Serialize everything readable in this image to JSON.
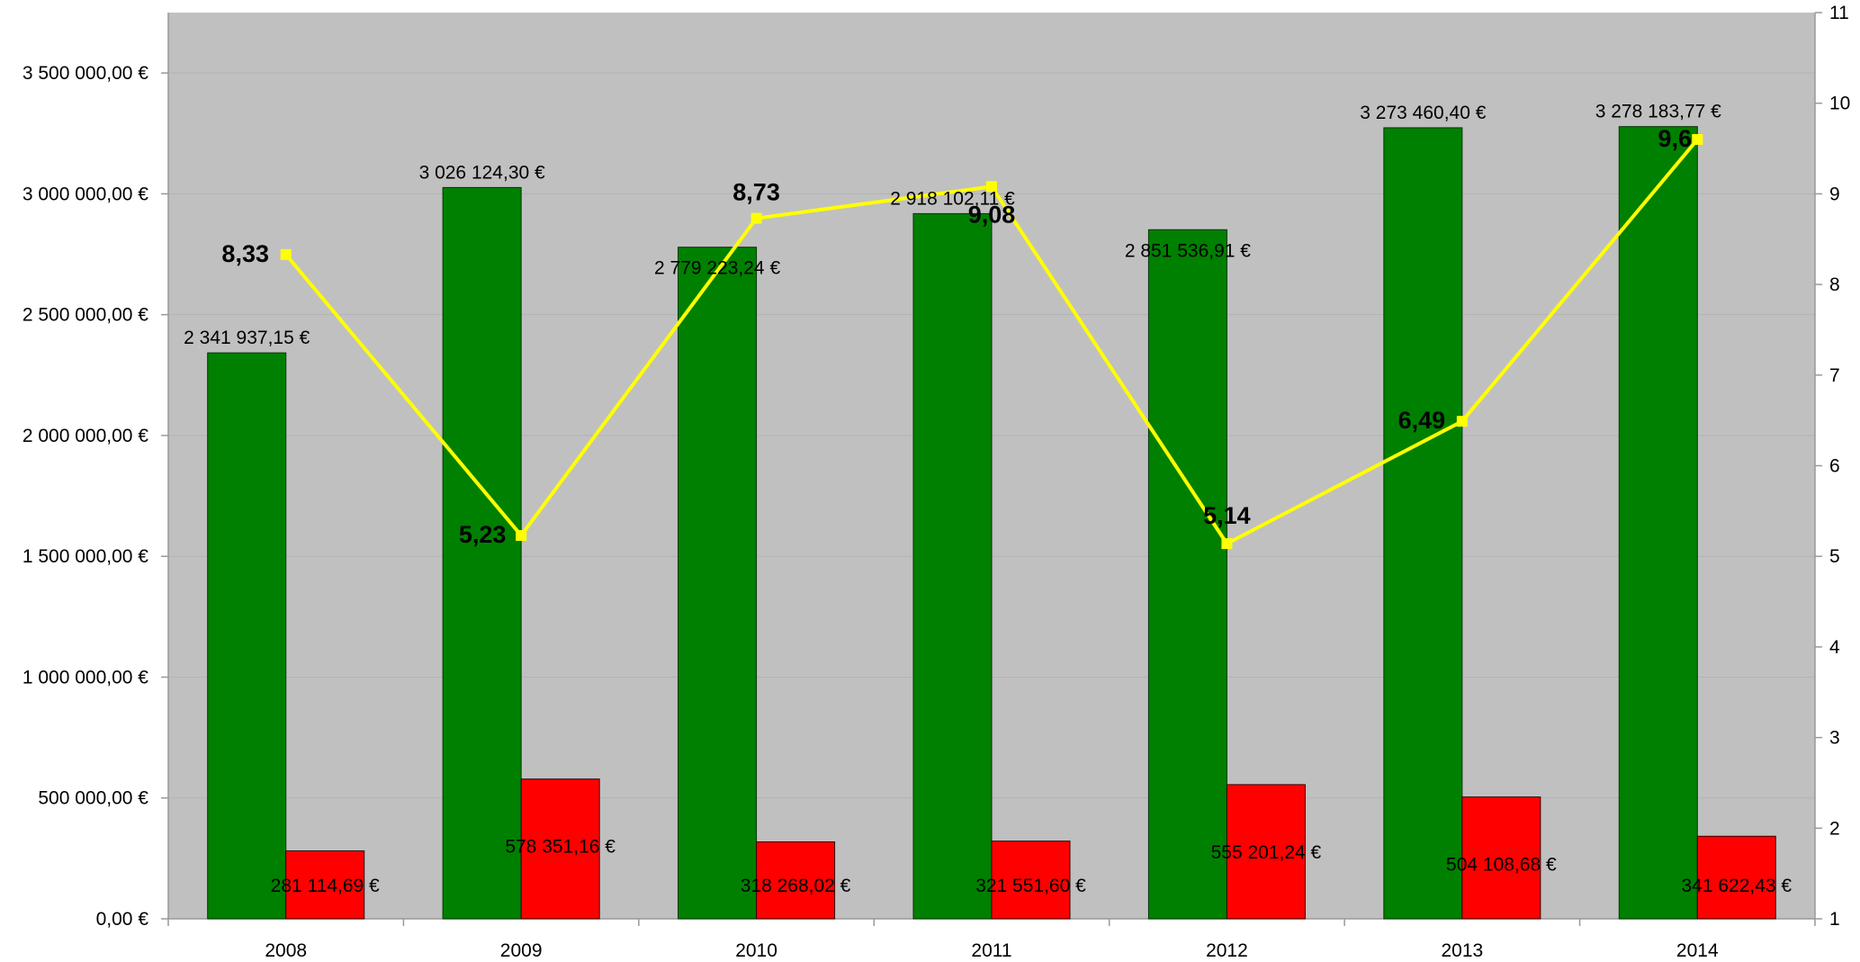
{
  "chart_data": {
    "type": "bar",
    "categories": [
      "2008",
      "2009",
      "2010",
      "2011",
      "2012",
      "2013",
      "2014"
    ],
    "series": [
      {
        "kind": "bar",
        "axis": "left",
        "color": "#008000",
        "values": [
          2341937.15,
          3026124.3,
          2779223.24,
          2918102.11,
          2851536.91,
          3273460.4,
          3278183.77
        ],
        "labels": [
          "2 341 937,15 €",
          "3 026 124,30 €",
          "2 779 223,24 €",
          "2 918 102,11 €",
          "2 851 536,91 €",
          "3 273 460,40 €",
          "3 278 183,77 €"
        ]
      },
      {
        "kind": "bar",
        "axis": "left",
        "color": "#ff0000",
        "values": [
          281114.69,
          578351.16,
          318268.02,
          321551.6,
          555201.24,
          504108.68,
          341622.43
        ],
        "labels": [
          "281 114,69 €",
          "578 351,16 €",
          "318 268,02 €",
          "321 551,60 €",
          "555 201,24 €",
          "504 108,68 €",
          "341 622,43 €"
        ]
      },
      {
        "kind": "line",
        "axis": "right",
        "color": "#ffff00",
        "values": [
          8.33,
          5.23,
          8.73,
          9.08,
          5.14,
          6.49,
          9.6
        ],
        "labels": [
          "8,33",
          "5,23",
          "8,73",
          "9,08",
          "5,14",
          "6,49",
          "9,6"
        ]
      }
    ],
    "y_left": {
      "ylim": [
        0,
        3750000
      ],
      "ticks": [
        0,
        500000,
        1000000,
        1500000,
        2000000,
        2500000,
        3000000,
        3500000
      ],
      "tick_labels": [
        "0,00 €",
        "500 000,00 €",
        "1 000 000,00 €",
        "1 500 000,00 €",
        "2 000 000,00 €",
        "2 500 000,00 €",
        "3 000 000,00 €",
        "3 500 000,00 €"
      ]
    },
    "y_right": {
      "ylim": [
        1,
        11
      ],
      "ticks": [
        1,
        2,
        3,
        4,
        5,
        6,
        7,
        8,
        9,
        10,
        11
      ],
      "tick_labels": [
        "1",
        "2",
        "3",
        "4",
        "5",
        "6",
        "7",
        "8",
        "9",
        "10",
        "11"
      ]
    },
    "plot_background": "#c0c0c0",
    "grid": true,
    "legend": "none"
  }
}
